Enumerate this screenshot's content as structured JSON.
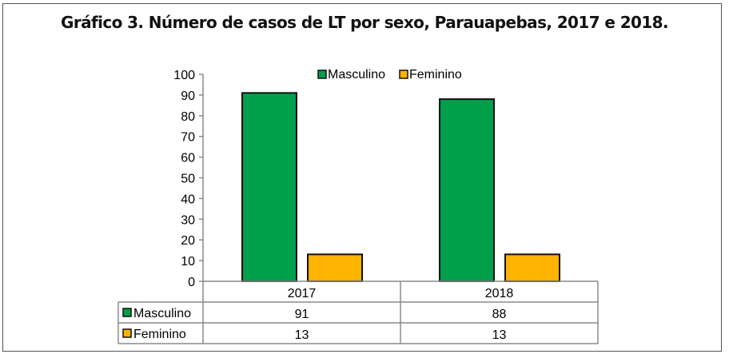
{
  "chart_data": {
    "type": "bar",
    "title": "Gráfico 3. Número de casos de LT por sexo, Parauapebas, 2017 e 2018.",
    "categories": [
      "2017",
      "2018"
    ],
    "series": [
      {
        "name": "Masculino",
        "values": [
          91,
          88
        ],
        "color": "#00A04A"
      },
      {
        "name": "Feminino",
        "values": [
          13,
          13
        ],
        "color": "#FFB300"
      }
    ],
    "ylim": [
      0,
      100
    ],
    "yticks": [
      0,
      10,
      20,
      30,
      40,
      50,
      60,
      70,
      80,
      90,
      100
    ],
    "xlabel": "",
    "ylabel": "",
    "legend": "top-center",
    "data_table": true,
    "grid": false
  }
}
